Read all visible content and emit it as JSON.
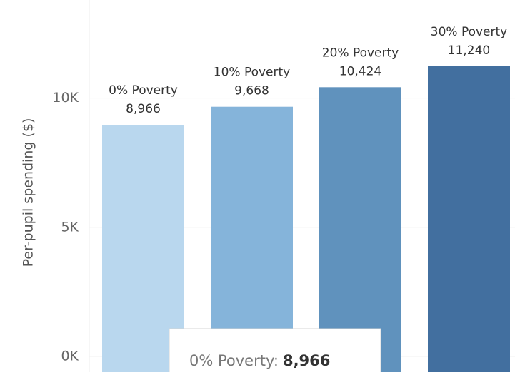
{
  "chart_data": {
    "type": "bar",
    "y_label": "Per-pupil spending ($)",
    "categories": [
      "0% Poverty",
      "10% Poverty",
      "20% Poverty",
      "30% Poverty"
    ],
    "values": [
      8966,
      9668,
      10424,
      11240
    ],
    "value_labels": [
      "8,966",
      "9,668",
      "10,424",
      "11,240"
    ],
    "colors": [
      "#b9d7ee",
      "#85b4da",
      "#6092bd",
      "#426f9f"
    ],
    "ylim": [
      0,
      13800
    ],
    "yticks": [
      {
        "value": 0,
        "label": "0K"
      },
      {
        "value": 5000,
        "label": "5K"
      },
      {
        "value": 10000,
        "label": "10K"
      }
    ],
    "grid": true,
    "tooltip": {
      "label": "0% Poverty:",
      "value": "8,966"
    }
  }
}
